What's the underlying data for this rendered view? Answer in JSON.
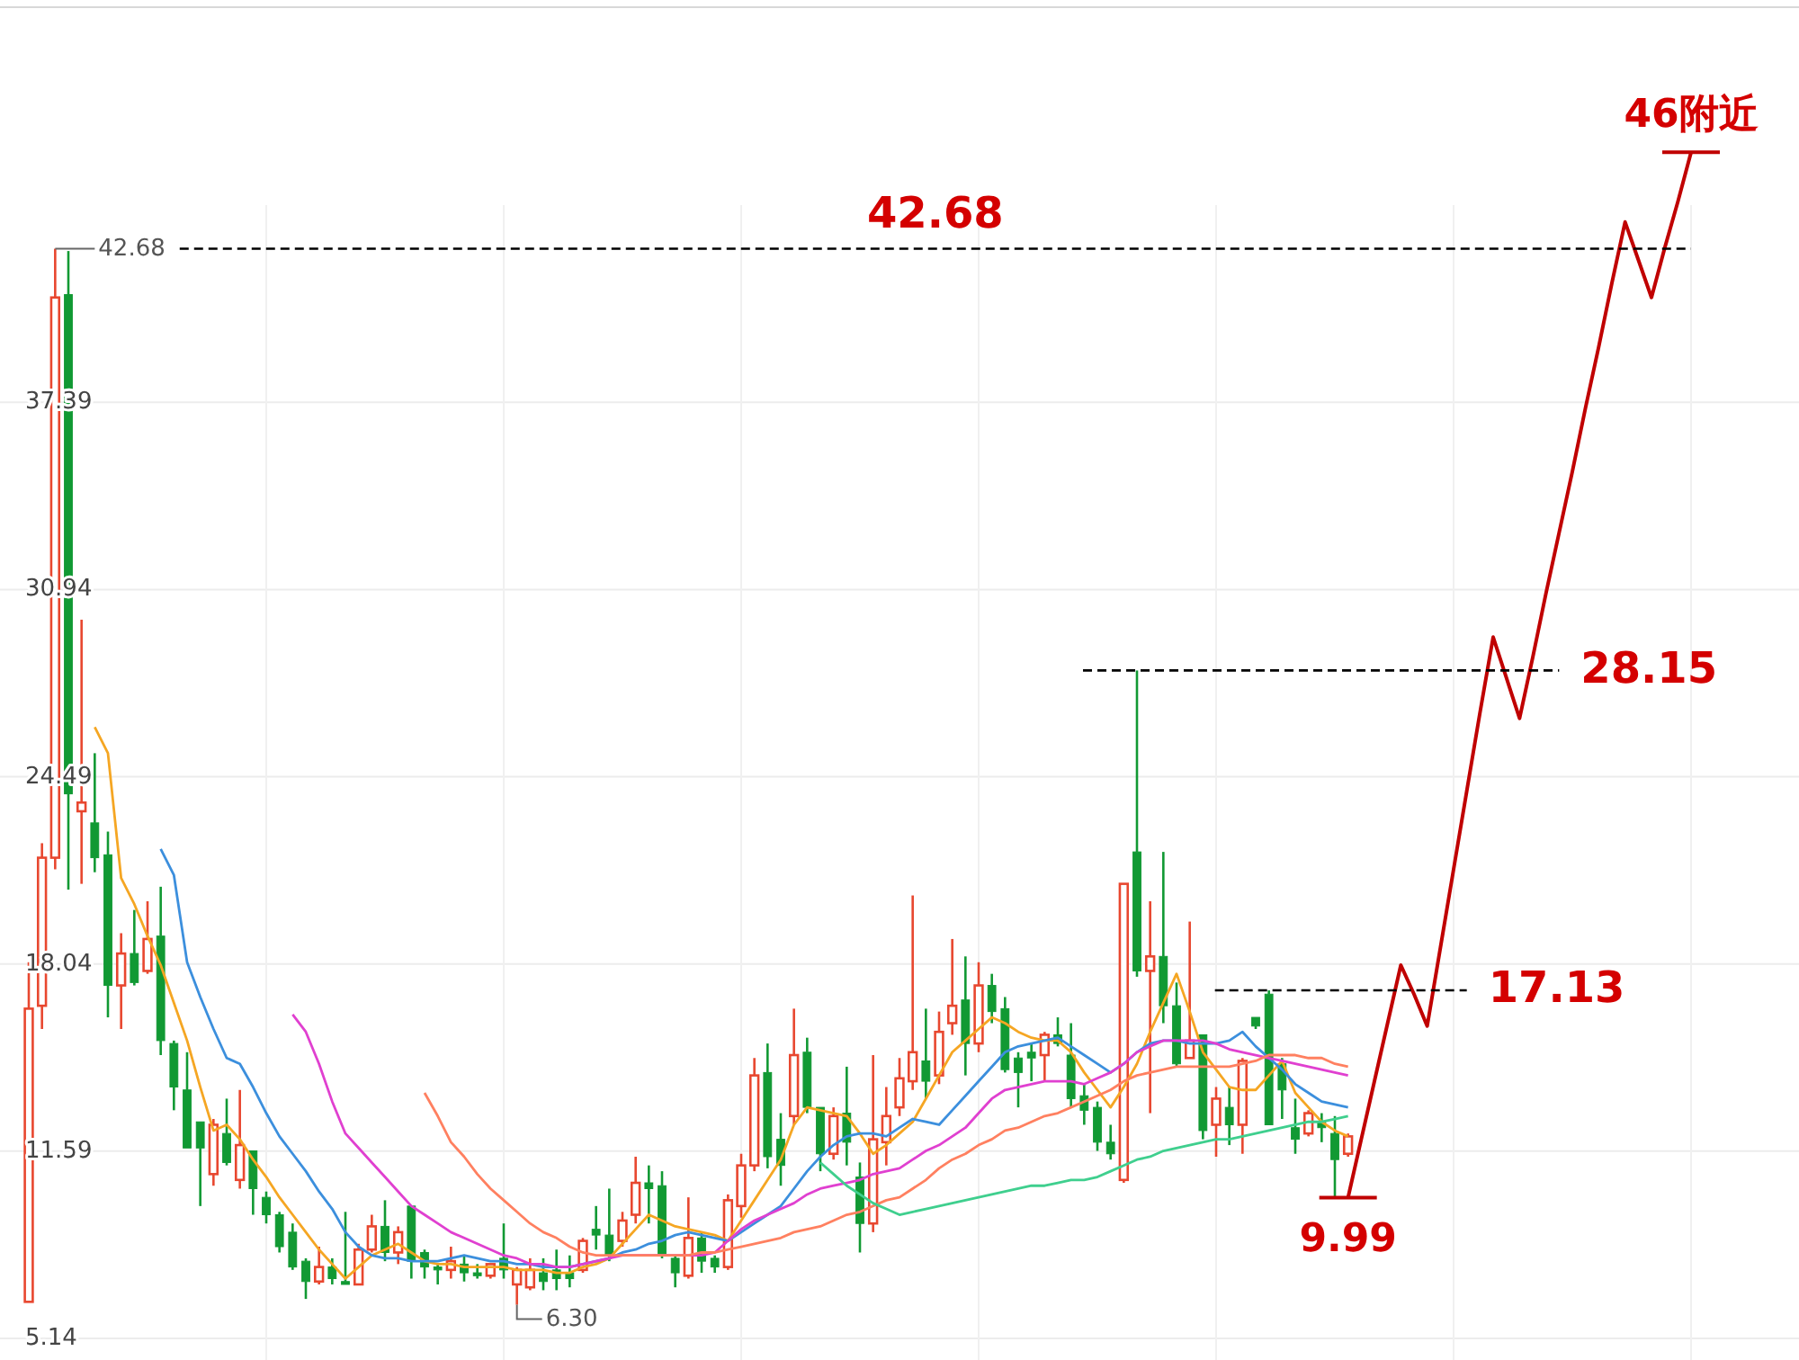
{
  "chart_data": {
    "type": "candlestick",
    "categories": [
      null,
      null,
      null,
      null,
      null,
      null,
      null,
      null,
      null,
      null,
      null,
      null,
      null,
      null,
      null,
      null,
      null,
      null,
      null,
      null,
      null,
      null,
      null,
      null,
      null,
      null,
      null,
      null,
      null,
      null,
      null,
      null,
      null,
      null,
      null,
      null,
      null,
      null,
      null,
      null,
      null,
      null,
      null,
      null,
      null,
      null,
      null,
      null,
      null,
      null,
      null,
      null,
      null,
      null,
      null,
      null,
      null,
      null,
      null,
      null,
      null,
      null,
      null,
      null,
      null,
      null,
      null,
      null,
      null,
      null,
      null,
      null,
      null,
      null,
      null,
      null,
      null,
      null,
      null,
      null,
      null,
      null,
      null,
      null,
      null,
      null,
      null,
      null,
      null,
      null,
      null,
      null,
      null,
      null,
      null,
      null,
      null,
      null,
      null,
      null,
      null,
      null,
      null,
      null,
      null,
      null,
      null,
      null,
      null,
      null,
      null,
      null,
      null,
      null,
      null,
      null,
      null,
      null,
      null,
      null,
      null,
      null,
      null,
      null,
      null,
      null,
      null
    ],
    "ohlc": [
      [
        6.4,
        18.1,
        6.4,
        16.5
      ],
      [
        16.6,
        22.2,
        15.8,
        21.7
      ],
      [
        21.7,
        42.68,
        21.3,
        41.0
      ],
      [
        41.1,
        42.6,
        20.6,
        23.9
      ],
      [
        23.3,
        29.9,
        20.8,
        23.6
      ],
      [
        22.9,
        25.3,
        21.2,
        21.7
      ],
      [
        21.8,
        22.6,
        16.2,
        17.3
      ],
      [
        17.3,
        19.1,
        15.8,
        18.4
      ],
      [
        18.4,
        19.9,
        17.3,
        17.4
      ],
      [
        17.8,
        20.2,
        17.7,
        18.9
      ],
      [
        19.0,
        20.7,
        14.9,
        15.4
      ],
      [
        15.3,
        15.4,
        13.0,
        13.8
      ],
      [
        13.7,
        15.0,
        11.7,
        11.7
      ],
      [
        12.6,
        12.6,
        9.7,
        11.7
      ],
      [
        10.8,
        12.7,
        10.4,
        12.5
      ],
      [
        12.2,
        13.4,
        11.1,
        11.2
      ],
      [
        10.6,
        13.7,
        10.3,
        11.8
      ],
      [
        11.6,
        11.6,
        9.4,
        10.3
      ],
      [
        10.0,
        10.2,
        9.1,
        9.4
      ],
      [
        9.4,
        9.5,
        8.1,
        8.3
      ],
      [
        8.8,
        9.1,
        7.5,
        7.6
      ],
      [
        7.8,
        7.9,
        6.5,
        7.1
      ],
      [
        7.1,
        8.3,
        7.0,
        7.6
      ],
      [
        7.6,
        7.9,
        7.0,
        7.2
      ],
      [
        7.1,
        9.5,
        7.0,
        7.0
      ],
      [
        7.0,
        8.4,
        7.0,
        8.2
      ],
      [
        8.2,
        9.4,
        8.1,
        9.0
      ],
      [
        9.0,
        9.9,
        7.8,
        8.1
      ],
      [
        8.1,
        9.0,
        7.7,
        8.8
      ],
      [
        9.7,
        9.7,
        7.2,
        7.8
      ],
      [
        8.1,
        8.2,
        7.2,
        7.6
      ],
      [
        7.6,
        7.7,
        7.0,
        7.5
      ],
      [
        7.5,
        8.3,
        7.2,
        7.8
      ],
      [
        7.7,
        8.0,
        7.1,
        7.4
      ],
      [
        7.4,
        7.7,
        7.2,
        7.3
      ],
      [
        7.3,
        7.7,
        7.2,
        7.7
      ],
      [
        7.9,
        9.1,
        7.2,
        7.5
      ],
      [
        7.0,
        7.6,
        6.3,
        7.5
      ],
      [
        6.9,
        7.9,
        6.8,
        7.5
      ],
      [
        7.4,
        7.9,
        6.8,
        7.1
      ],
      [
        7.5,
        8.2,
        6.8,
        7.2
      ],
      [
        7.4,
        8.0,
        6.9,
        7.2
      ],
      [
        7.5,
        8.6,
        7.4,
        8.5
      ],
      [
        8.9,
        9.7,
        8.2,
        8.7
      ],
      [
        8.7,
        10.3,
        7.8,
        8.0
      ],
      [
        8.5,
        9.5,
        8.3,
        9.2
      ],
      [
        9.4,
        11.4,
        9.1,
        10.5
      ],
      [
        10.5,
        11.1,
        9.1,
        10.3
      ],
      [
        10.4,
        10.9,
        7.9,
        8.0
      ],
      [
        7.9,
        8.0,
        6.9,
        7.4
      ],
      [
        7.3,
        10.0,
        7.2,
        8.6
      ],
      [
        8.6,
        8.8,
        7.4,
        7.8
      ],
      [
        7.9,
        8.0,
        7.4,
        7.6
      ],
      [
        7.6,
        10.1,
        7.5,
        9.9
      ],
      [
        9.7,
        11.5,
        9.3,
        11.1
      ],
      [
        11.1,
        14.8,
        10.9,
        14.2
      ],
      [
        14.3,
        15.3,
        11.0,
        11.4
      ],
      [
        12.0,
        12.9,
        10.4,
        11.1
      ],
      [
        12.8,
        16.5,
        12.5,
        14.9
      ],
      [
        15.0,
        15.5,
        12.9,
        13.1
      ],
      [
        13.1,
        13.1,
        10.9,
        11.5
      ],
      [
        11.5,
        13.1,
        11.3,
        12.8
      ],
      [
        12.9,
        14.5,
        11.1,
        11.9
      ],
      [
        10.7,
        11.2,
        8.1,
        9.1
      ],
      [
        9.1,
        14.9,
        8.8,
        12.0
      ],
      [
        11.9,
        13.8,
        11.1,
        12.8
      ],
      [
        13.1,
        14.8,
        12.8,
        14.1
      ],
      [
        14.0,
        20.4,
        13.7,
        15.0
      ],
      [
        14.7,
        16.5,
        13.4,
        14.0
      ],
      [
        14.2,
        16.4,
        13.9,
        15.7
      ],
      [
        16.0,
        18.9,
        15.6,
        16.6
      ],
      [
        16.8,
        18.3,
        14.2,
        15.3
      ],
      [
        15.3,
        18.1,
        15.0,
        17.3
      ],
      [
        17.3,
        17.7,
        16.0,
        16.4
      ],
      [
        16.5,
        16.9,
        14.3,
        14.4
      ],
      [
        14.8,
        15.0,
        13.1,
        14.3
      ],
      [
        15.0,
        15.3,
        14.0,
        14.8
      ],
      [
        14.9,
        15.7,
        14.0,
        15.6
      ],
      [
        15.6,
        16.2,
        15.2,
        15.3
      ],
      [
        14.9,
        16.0,
        13.1,
        13.4
      ],
      [
        13.5,
        13.9,
        12.5,
        13.0
      ],
      [
        13.1,
        13.3,
        11.6,
        11.9
      ],
      [
        11.9,
        12.5,
        11.3,
        11.5
      ],
      [
        10.6,
        20.8,
        10.5,
        20.8
      ],
      [
        21.9,
        28.15,
        17.6,
        17.8
      ],
      [
        17.8,
        20.2,
        12.9,
        18.3
      ],
      [
        18.3,
        21.9,
        16.0,
        16.6
      ],
      [
        16.6,
        17.4,
        14.5,
        14.6
      ],
      [
        14.8,
        19.5,
        14.8,
        15.4
      ],
      [
        15.6,
        15.6,
        12.0,
        12.3
      ],
      [
        12.5,
        13.8,
        11.4,
        13.4
      ],
      [
        13.1,
        13.8,
        11.8,
        12.5
      ],
      [
        12.5,
        14.8,
        11.5,
        14.7
      ],
      [
        16.2,
        16.2,
        15.8,
        15.9
      ],
      [
        17.0,
        17.13,
        12.5,
        12.5
      ],
      [
        14.6,
        14.8,
        12.7,
        13.7
      ],
      [
        12.4,
        13.4,
        11.5,
        12.0
      ],
      [
        12.2,
        13.0,
        12.1,
        12.9
      ],
      [
        12.6,
        12.9,
        11.9,
        12.4
      ],
      [
        12.2,
        12.8,
        9.99,
        11.3
      ],
      [
        11.5,
        12.2,
        11.4,
        12.1
      ],
      null,
      null,
      null,
      null,
      null,
      null,
      null,
      null,
      null,
      null,
      null,
      null,
      null,
      null,
      null,
      null,
      null,
      null,
      null,
      null,
      null,
      null,
      null,
      null,
      null,
      null
    ],
    "series": [
      {
        "type": "line",
        "color": "#f5a623",
        "values": [
          null,
          null,
          null,
          null,
          null,
          26.2,
          25.3,
          21.0,
          20.1,
          19.0,
          18.0,
          16.7,
          15.4,
          13.8,
          12.3,
          12.5,
          12.0,
          11.3,
          10.7,
          10.0,
          9.4,
          8.8,
          8.2,
          7.7,
          7.2,
          7.6,
          8.0,
          8.2,
          8.4,
          8.1,
          7.8,
          7.7,
          7.7,
          7.6,
          7.6,
          7.6,
          7.6,
          7.5,
          7.5,
          7.5,
          7.4,
          7.4,
          7.6,
          7.7,
          7.9,
          8.4,
          8.9,
          9.4,
          9.2,
          9.0,
          8.9,
          8.8,
          8.7,
          8.5,
          9.2,
          9.9,
          10.6,
          11.3,
          12.5,
          13.1,
          13.0,
          12.9,
          12.8,
          12.2,
          11.5,
          11.8,
          12.2,
          12.6,
          13.4,
          14.2,
          15.0,
          15.4,
          15.8,
          16.2,
          16.0,
          15.7,
          15.5,
          15.4,
          15.4,
          15.0,
          14.3,
          13.7,
          13.1,
          13.8,
          14.6,
          15.7,
          16.7,
          17.7,
          16.4,
          15.0,
          14.4,
          13.8,
          13.7,
          13.7,
          14.2,
          14.7,
          13.6,
          13.1,
          12.6,
          12.3,
          12.1,
          null,
          null,
          null,
          null,
          null,
          null,
          null,
          null,
          null,
          null,
          null,
          null,
          null,
          null,
          null,
          null,
          null,
          null,
          null,
          null,
          null,
          null,
          null,
          null,
          null,
          null
        ]
      },
      {
        "type": "line",
        "color": "#3c8fdd",
        "values": [
          null,
          null,
          null,
          null,
          null,
          null,
          null,
          null,
          null,
          null,
          22.0,
          21.1,
          18.1,
          16.9,
          15.8,
          14.8,
          14.6,
          13.8,
          12.9,
          12.1,
          11.5,
          10.9,
          10.2,
          9.6,
          8.8,
          8.3,
          8.0,
          7.9,
          7.9,
          7.8,
          7.8,
          7.8,
          7.9,
          8.0,
          7.9,
          7.8,
          7.8,
          7.7,
          7.7,
          7.6,
          7.6,
          7.6,
          7.7,
          7.8,
          7.9,
          8.1,
          8.2,
          8.4,
          8.5,
          8.7,
          8.8,
          8.7,
          8.6,
          8.5,
          8.8,
          9.1,
          9.4,
          9.7,
          10.3,
          10.9,
          11.4,
          11.8,
          12.1,
          12.2,
          12.2,
          12.1,
          12.4,
          12.7,
          12.6,
          12.5,
          13.0,
          13.5,
          14.0,
          14.5,
          15.0,
          15.2,
          15.3,
          15.4,
          15.5,
          15.2,
          14.9,
          14.6,
          14.3,
          14.6,
          15.0,
          15.3,
          15.4,
          15.4,
          15.3,
          15.3,
          15.3,
          15.4,
          15.7,
          15.2,
          14.8,
          14.4,
          13.9,
          13.6,
          13.3,
          13.2,
          13.1,
          null,
          null,
          null,
          null,
          null,
          null,
          null,
          null,
          null,
          null,
          null,
          null,
          null,
          null,
          null,
          null,
          null,
          null,
          null,
          null,
          null,
          null,
          null,
          null,
          null,
          null
        ]
      },
      {
        "type": "line",
        "color": "#e040d0",
        "values": [
          null,
          null,
          null,
          null,
          null,
          null,
          null,
          null,
          null,
          null,
          null,
          null,
          null,
          null,
          null,
          null,
          null,
          null,
          null,
          null,
          16.3,
          15.7,
          14.6,
          13.3,
          12.2,
          11.7,
          11.2,
          10.7,
          10.2,
          9.7,
          9.4,
          9.1,
          8.8,
          8.6,
          8.4,
          8.2,
          8.0,
          7.9,
          7.7,
          7.7,
          7.6,
          7.6,
          7.7,
          7.8,
          7.9,
          8.0,
          8.0,
          8.0,
          8.0,
          8.0,
          8.0,
          8.0,
          8.1,
          8.5,
          8.9,
          9.2,
          9.4,
          9.6,
          9.8,
          10.1,
          10.3,
          10.4,
          10.5,
          10.6,
          10.8,
          10.9,
          11.0,
          11.3,
          11.6,
          11.8,
          12.1,
          12.4,
          12.9,
          13.4,
          13.7,
          13.8,
          13.9,
          14.0,
          14.0,
          14.0,
          13.9,
          14.1,
          14.3,
          14.6,
          15.0,
          15.2,
          15.4,
          15.4,
          15.4,
          15.4,
          15.3,
          15.1,
          15.0,
          14.9,
          14.8,
          14.7,
          14.6,
          14.5,
          14.4,
          14.3,
          14.2,
          null,
          null,
          null,
          null,
          null,
          null,
          null,
          null,
          null,
          null,
          null,
          null,
          null,
          null,
          null,
          null,
          null,
          null,
          null,
          null,
          null,
          null,
          null,
          null,
          null,
          null
        ]
      },
      {
        "type": "line",
        "color": "#ff8060",
        "values": [
          null,
          null,
          null,
          null,
          null,
          null,
          null,
          null,
          null,
          null,
          null,
          null,
          null,
          null,
          null,
          null,
          null,
          null,
          null,
          null,
          null,
          null,
          null,
          null,
          null,
          null,
          null,
          null,
          null,
          null,
          13.6,
          12.8,
          11.9,
          11.4,
          10.8,
          10.3,
          9.9,
          9.5,
          9.1,
          8.8,
          8.6,
          8.3,
          8.1,
          8.0,
          8.0,
          8.0,
          8.0,
          8.0,
          8.0,
          8.0,
          8.0,
          8.1,
          8.1,
          8.2,
          8.3,
          8.4,
          8.5,
          8.6,
          8.8,
          8.9,
          9.0,
          9.2,
          9.4,
          9.5,
          9.7,
          9.9,
          10.0,
          10.3,
          10.6,
          11.0,
          11.3,
          11.5,
          11.8,
          12.0,
          12.3,
          12.4,
          12.6,
          12.8,
          12.9,
          13.1,
          13.3,
          13.5,
          13.7,
          14.0,
          14.2,
          14.3,
          14.4,
          14.5,
          14.5,
          14.5,
          14.5,
          14.5,
          14.6,
          14.7,
          14.9,
          14.9,
          14.9,
          14.8,
          14.8,
          14.6,
          14.5,
          null,
          null,
          null,
          null,
          null,
          null,
          null,
          null,
          null,
          null,
          null,
          null,
          null,
          null,
          null,
          null,
          null,
          null,
          null,
          null,
          null,
          null,
          null,
          null,
          null,
          null
        ]
      },
      {
        "type": "line",
        "color": "#3fcf8e",
        "values": [
          null,
          null,
          null,
          null,
          null,
          null,
          null,
          null,
          null,
          null,
          null,
          null,
          null,
          null,
          null,
          null,
          null,
          null,
          null,
          null,
          null,
          null,
          null,
          null,
          null,
          null,
          null,
          null,
          null,
          null,
          null,
          null,
          null,
          null,
          null,
          null,
          null,
          null,
          null,
          null,
          null,
          null,
          null,
          null,
          null,
          null,
          null,
          null,
          null,
          null,
          null,
          null,
          null,
          null,
          null,
          null,
          null,
          null,
          null,
          null,
          11.2,
          10.8,
          10.4,
          10.1,
          9.8,
          9.6,
          9.4,
          9.5,
          9.6,
          9.7,
          9.8,
          9.9,
          10.0,
          10.1,
          10.2,
          10.3,
          10.4,
          10.4,
          10.5,
          10.6,
          10.6,
          10.7,
          10.9,
          11.1,
          11.3,
          11.4,
          11.6,
          11.7,
          11.8,
          11.9,
          12.0,
          12.0,
          12.1,
          12.2,
          12.3,
          12.4,
          12.5,
          12.6,
          12.6,
          12.7,
          12.8,
          null,
          null,
          null,
          null,
          null,
          null,
          null,
          null,
          null,
          null,
          null,
          null,
          null,
          null,
          null,
          null,
          null,
          null,
          null,
          null,
          null,
          null,
          null,
          null,
          null,
          null
        ]
      },
      {
        "type": "line",
        "color": "#c00000",
        "values": [
          null,
          null,
          null,
          null,
          null,
          null,
          null,
          null,
          null,
          null,
          null,
          null,
          null,
          null,
          null,
          null,
          null,
          null,
          null,
          null,
          null,
          null,
          null,
          null,
          null,
          null,
          null,
          null,
          null,
          null,
          null,
          null,
          null,
          null,
          null,
          null,
          null,
          null,
          null,
          null,
          null,
          null,
          null,
          null,
          null,
          null,
          null,
          null,
          null,
          null,
          null,
          null,
          null,
          null,
          null,
          null,
          null,
          null,
          null,
          null,
          null,
          null,
          null,
          null,
          null,
          null,
          null,
          null,
          null,
          null,
          null,
          null,
          null,
          null,
          null,
          null,
          null,
          null,
          null,
          null,
          null,
          null,
          null,
          null,
          null,
          null,
          null,
          null,
          null,
          null,
          null,
          null,
          null,
          null,
          null,
          null,
          null,
          null,
          null,
          null,
          9.99,
          12.0,
          14.0,
          16.0,
          18.0,
          17.0,
          15.9,
          18.6,
          21.3,
          24.0,
          26.7,
          29.3,
          27.9,
          26.5,
          28.6,
          30.8,
          32.9,
          35.0,
          37.2,
          39.3,
          41.5,
          43.6,
          42.3,
          41.0,
          42.7,
          44.3,
          46
        ]
      }
    ],
    "ylim": [
      5.14,
      51
    ],
    "yticks": [
      5.14,
      11.59,
      18.04,
      24.49,
      30.94,
      37.39
    ],
    "tick_labels": "y",
    "grid": true,
    "ref_lines": [
      {
        "axis": "y",
        "value": 42.68,
        "label": "42.68",
        "color": "#000000",
        "line_style": "dashed"
      },
      {
        "axis": "y",
        "value": 28.15,
        "label": "28.15",
        "color": "#000000",
        "line_style": "dashed"
      },
      {
        "axis": "y",
        "value": 17.13,
        "label": "17.13",
        "color": "#000000",
        "line_style": "dashed"
      }
    ],
    "annotations": [
      "42.68",
      "6.30",
      {
        "text": "9.99",
        "y": 9.99
      },
      {
        "text": "46附近",
        "y": 46
      }
    ]
  }
}
